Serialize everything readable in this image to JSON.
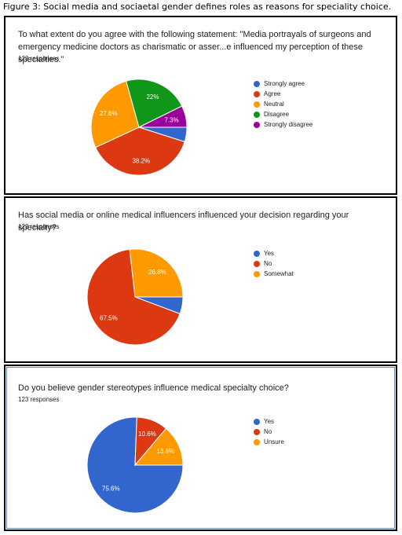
{
  "figure_caption": "Figure 3: Social media and sociaetal gender defines roles as reasons for speciality choice.",
  "chart_data": [
    {
      "type": "pie",
      "title": "To what extent do you agree with the following statement: \"Media portrayals of surgeons and emergency medicine doctors as charismatic or asser...e influenced my perception of these specialties.\"",
      "responses": "123 responses",
      "legend_position": "right",
      "slices": [
        {
          "label": "Strongly agree",
          "value": 4.9,
          "color": "#3366cc"
        },
        {
          "label": "Agree",
          "value": 38.2,
          "display": "38.2%",
          "color": "#dc3912"
        },
        {
          "label": "Neutral",
          "value": 27.6,
          "display": "27.6%",
          "color": "#ff9900"
        },
        {
          "label": "Disagree",
          "value": 22.0,
          "display": "22%",
          "color": "#109618"
        },
        {
          "label": "Strongly disagree",
          "value": 7.3,
          "display": "7.3%",
          "color": "#990099"
        }
      ]
    },
    {
      "type": "pie",
      "title": "Has social media or online medical influencers influenced your decision regarding your specialty?",
      "responses": "123 responses",
      "legend_position": "right",
      "slices": [
        {
          "label": "Yes",
          "value": 5.7,
          "color": "#3366cc"
        },
        {
          "label": "No",
          "value": 67.5,
          "display": "67.5%",
          "color": "#dc3912"
        },
        {
          "label": "Somewhat",
          "value": 26.8,
          "display": "26.8%",
          "color": "#ff9900"
        }
      ]
    },
    {
      "type": "pie",
      "title": "Do you believe gender stereotypes influence medical specialty choice?",
      "responses": "123 responses",
      "legend_position": "right",
      "slices": [
        {
          "label": "Yes",
          "value": 75.6,
          "display": "75.6%",
          "color": "#3366cc"
        },
        {
          "label": "No",
          "value": 10.6,
          "display": "10.6%",
          "color": "#dc3912"
        },
        {
          "label": "Unsure",
          "value": 13.8,
          "display": "13.8%",
          "color": "#ff9900"
        }
      ]
    }
  ]
}
